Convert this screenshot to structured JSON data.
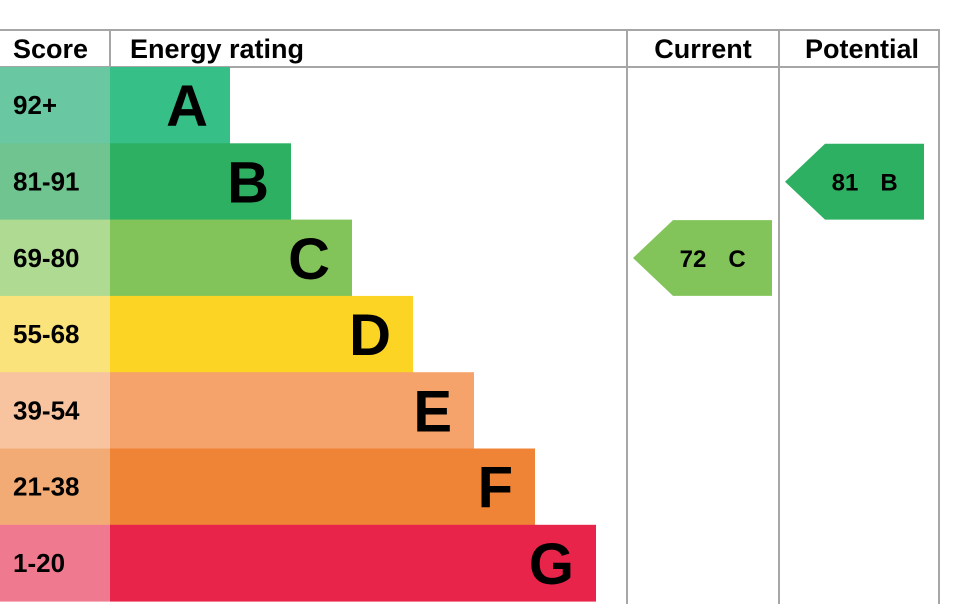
{
  "header": {
    "score": "Score",
    "rating": "Energy rating",
    "current": "Current",
    "potential": "Potential"
  },
  "chart_data": {
    "type": "bar",
    "bands": [
      {
        "letter": "A",
        "range": "92+",
        "color": "#37BF88",
        "score_bg": "#69C7A1"
      },
      {
        "letter": "B",
        "range": "81-91",
        "color": "#2EB062",
        "score_bg": "#6FC48F"
      },
      {
        "letter": "C",
        "range": "69-80",
        "color": "#83C45A",
        "score_bg": "#AEDA92"
      },
      {
        "letter": "D",
        "range": "55-68",
        "color": "#FCD524",
        "score_bg": "#FAE37A"
      },
      {
        "letter": "E",
        "range": "39-54",
        "color": "#F5A36B",
        "score_bg": "#F8C4A0"
      },
      {
        "letter": "F",
        "range": "21-38",
        "color": "#EF8336",
        "score_bg": "#F2AB75"
      },
      {
        "letter": "G",
        "range": "1-20",
        "color": "#E8244A",
        "score_bg": "#EF7A8F"
      }
    ],
    "current": {
      "value": 72,
      "band": "C",
      "label_value": "72",
      "label_band": "C"
    },
    "potential": {
      "value": 81,
      "band": "B",
      "label_value": "81",
      "label_band": "B"
    }
  }
}
